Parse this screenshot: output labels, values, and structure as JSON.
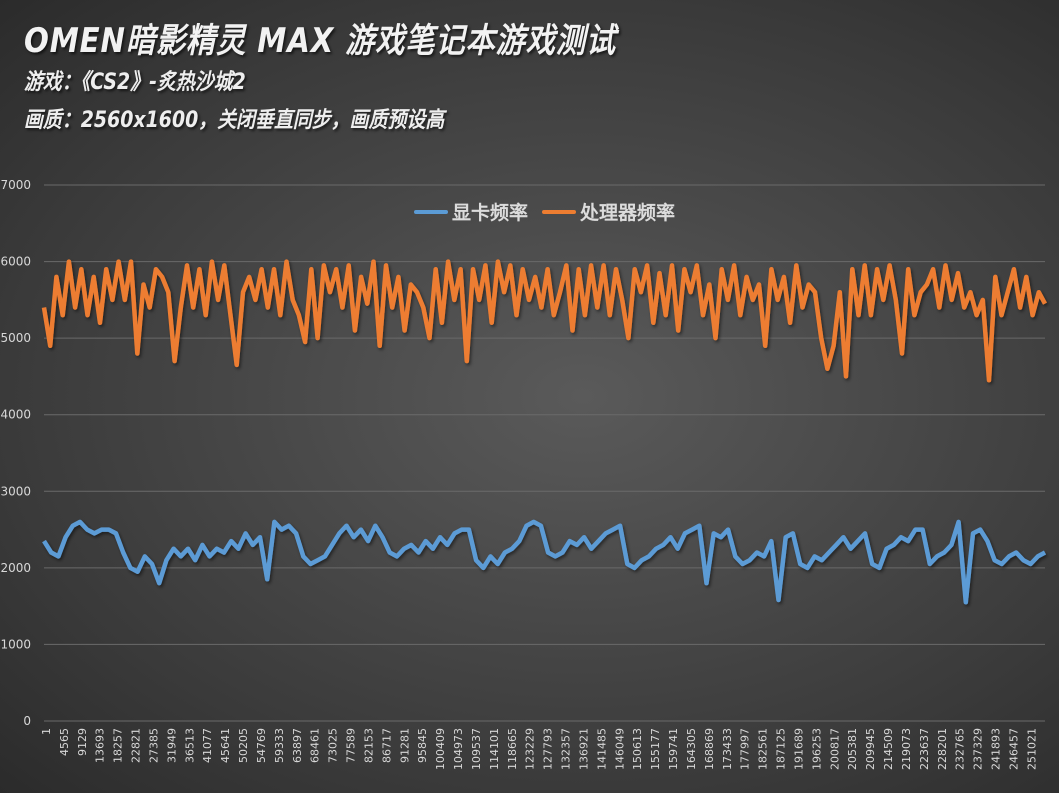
{
  "header": {
    "title": "OMEN暗影精灵 MAX 游戏笔记本游戏测试",
    "game_line": "游戏：《CS2》-炙热沙城2",
    "settings_line": "画质：2560x1600，关闭垂直同步，画质预设高"
  },
  "colors": {
    "gpu": "#5b9bd5",
    "cpu": "#ed7d31",
    "grid": "#6a6a6a",
    "tick_text": "#d8d8d8"
  },
  "chart_data": {
    "type": "line",
    "title": "OMEN暗影精灵 MAX 游戏笔记本游戏测试",
    "xlabel": "",
    "ylabel": "",
    "ylim": [
      0,
      7000
    ],
    "yticks": [
      0,
      1000,
      2000,
      3000,
      4000,
      5000,
      6000,
      7000
    ],
    "xlim": [
      1,
      255000
    ],
    "x_tick_labels": [
      "1",
      "4565",
      "9129",
      "13693",
      "18257",
      "22821",
      "27385",
      "31949",
      "36513",
      "41077",
      "45641",
      "50205",
      "54769",
      "59333",
      "63897",
      "68461",
      "73025",
      "77589",
      "82153",
      "86717",
      "91281",
      "95845",
      "100409",
      "104973",
      "109537",
      "114101",
      "118665",
      "123229",
      "127793",
      "132357",
      "136921",
      "141485",
      "146049",
      "150613",
      "155177",
      "159741",
      "164305",
      "168869",
      "173433",
      "177997",
      "182561",
      "187125",
      "191689",
      "196253",
      "200817",
      "205381",
      "209945",
      "214509",
      "219073",
      "223637",
      "228201",
      "232765",
      "237329",
      "241893",
      "246457",
      "251021"
    ],
    "grid": true,
    "legend_position": "top-center",
    "legend": [
      "显卡频率",
      "处理器频率"
    ],
    "series": [
      {
        "name": "显卡频率",
        "color": "#5b9bd5",
        "values": [
          2350,
          2200,
          2150,
          2400,
          2550,
          2600,
          2500,
          2450,
          2500,
          2500,
          2450,
          2200,
          2000,
          1950,
          2150,
          2050,
          1800,
          2100,
          2250,
          2150,
          2250,
          2100,
          2300,
          2150,
          2250,
          2200,
          2350,
          2250,
          2450,
          2300,
          2400,
          1850,
          2600,
          2500,
          2550,
          2450,
          2150,
          2050,
          2100,
          2150,
          2300,
          2450,
          2550,
          2400,
          2500,
          2350,
          2550,
          2400,
          2200,
          2150,
          2250,
          2300,
          2200,
          2350,
          2250,
          2400,
          2300,
          2450,
          2500,
          2500,
          2100,
          2000,
          2150,
          2050,
          2200,
          2250,
          2350,
          2550,
          2600,
          2550,
          2200,
          2150,
          2200,
          2350,
          2300,
          2400,
          2250,
          2350,
          2450,
          2500,
          2550,
          2050,
          2000,
          2100,
          2150,
          2250,
          2300,
          2400,
          2250,
          2450,
          2500,
          2550,
          1800,
          2450,
          2400,
          2500,
          2150,
          2050,
          2100,
          2200,
          2150,
          2350,
          1580,
          2400,
          2450,
          2050,
          2000,
          2150,
          2100,
          2200,
          2300,
          2400,
          2250,
          2350,
          2450,
          2050,
          2000,
          2250,
          2300,
          2400,
          2350,
          2500,
          2500,
          2050,
          2150,
          2200,
          2300,
          2600,
          1550,
          2450,
          2500,
          2350,
          2100,
          2050,
          2150,
          2200,
          2100,
          2050,
          2150,
          2200
        ]
      },
      {
        "name": "处理器频率",
        "color": "#ed7d31",
        "values": [
          5400,
          4900,
          5800,
          5300,
          6000,
          5400,
          5900,
          5300,
          5800,
          5200,
          5900,
          5500,
          6000,
          5500,
          6000,
          4800,
          5700,
          5400,
          5900,
          5800,
          5600,
          4700,
          5400,
          5950,
          5400,
          5900,
          5300,
          6000,
          5500,
          5950,
          5300,
          4650,
          5600,
          5800,
          5500,
          5900,
          5400,
          5900,
          5300,
          6000,
          5500,
          5300,
          4950,
          5900,
          5000,
          5950,
          5600,
          5900,
          5400,
          5950,
          5100,
          5800,
          5450,
          6000,
          4900,
          5950,
          5400,
          5800,
          5100,
          5700,
          5600,
          5400,
          5000,
          5900,
          5200,
          6000,
          5500,
          5900,
          4700,
          5900,
          5500,
          5950,
          5200,
          6000,
          5600,
          5950,
          5300,
          5900,
          5500,
          5800,
          5400,
          5900,
          5300,
          5600,
          5950,
          5100,
          5900,
          5300,
          5950,
          5400,
          5950,
          5300,
          5900,
          5500,
          5000,
          5900,
          5600,
          5950,
          5200,
          5850,
          5300,
          5950,
          5100,
          5900,
          5600,
          5950,
          5300,
          5700,
          5000,
          5900,
          5500,
          5950,
          5300,
          5800,
          5500,
          5700,
          4900,
          5900,
          5500,
          5800,
          5200,
          5950,
          5400,
          5700,
          5600,
          5000,
          4600,
          4900,
          5600,
          4500,
          5900,
          5300,
          5950,
          5300,
          5900,
          5500,
          5950,
          5500,
          4800,
          5900,
          5300,
          5600,
          5700,
          5900,
          5400,
          5950,
          5500,
          5850,
          5400,
          5600,
          5300,
          5500,
          4450,
          5800,
          5300,
          5600,
          5900,
          5400,
          5800,
          5300,
          5600,
          5450
        ]
      }
    ]
  }
}
